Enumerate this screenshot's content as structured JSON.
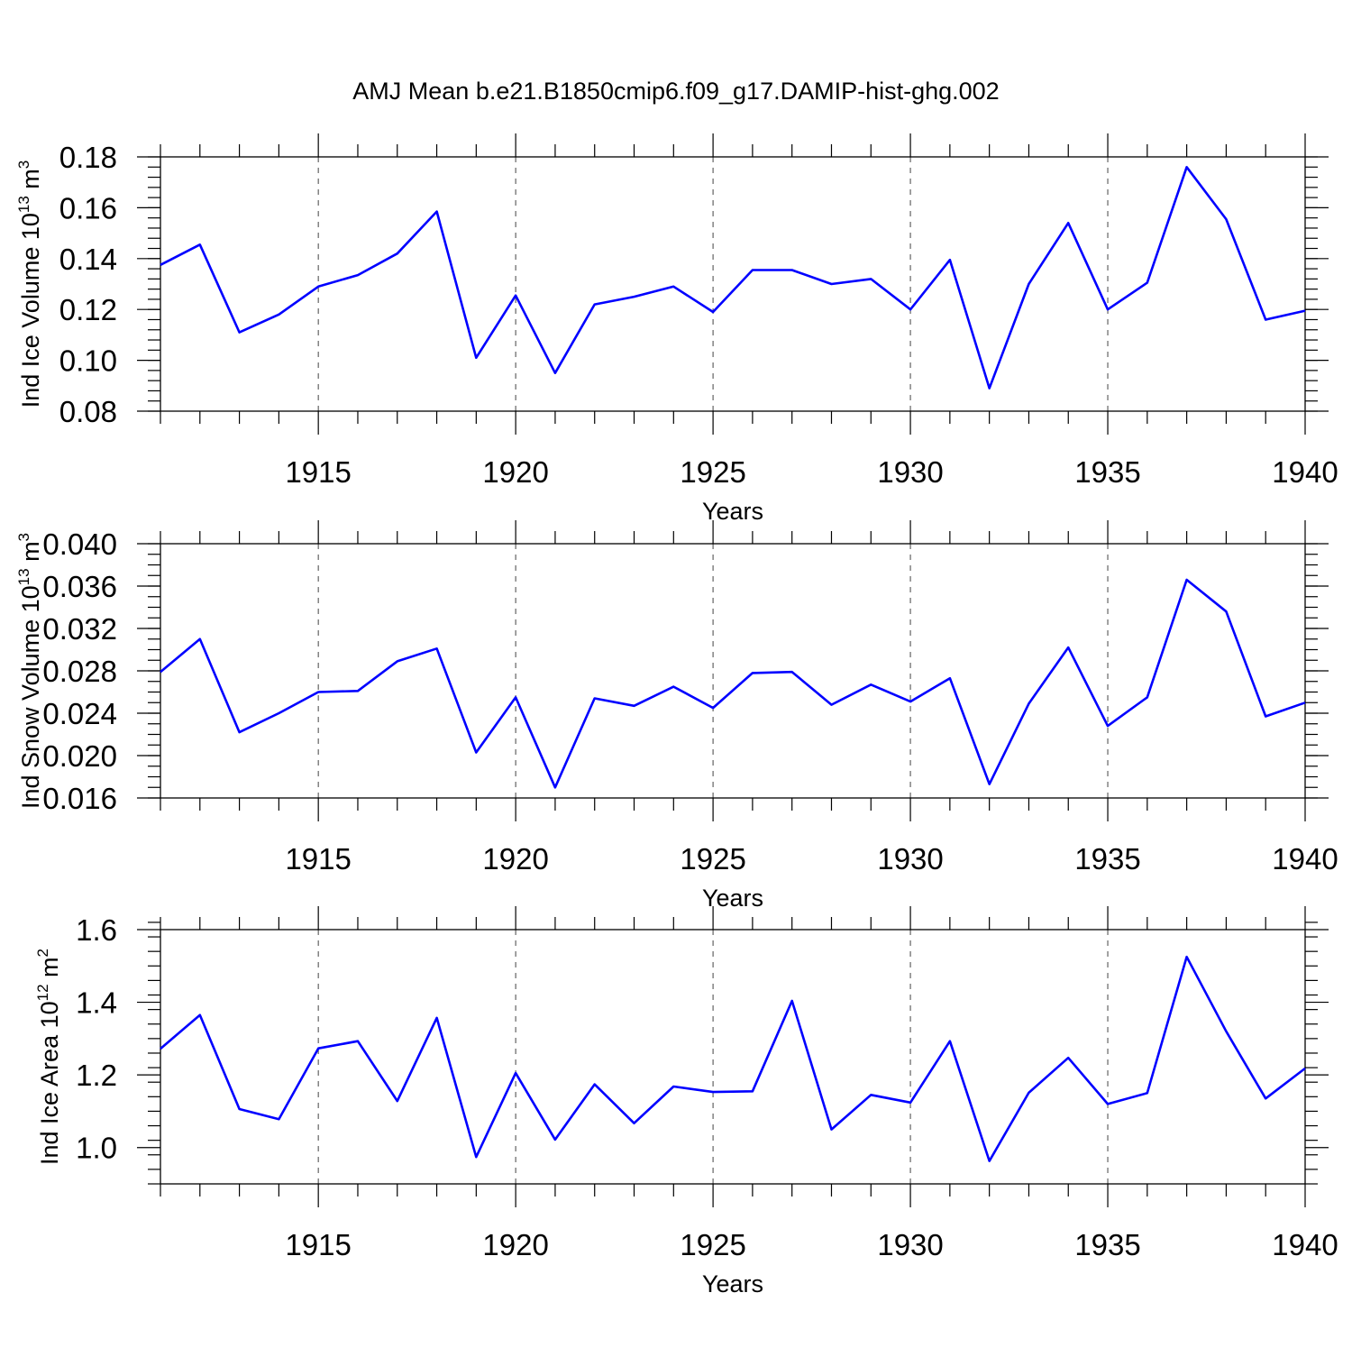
{
  "title": "AMJ Mean b.e21.B1850cmip6.f09_g17.DAMIP-hist-ghg.002",
  "line_color": "#0000ff",
  "chart_data": [
    {
      "type": "line",
      "id": "ice-volume",
      "ylabel_main": "Ind Ice Volume 10",
      "ylabel_exp": "13",
      "ylabel_unit": " m",
      "ylabel_unit_exp": "3",
      "xlabel": "Years",
      "xlim": [
        1911,
        1940
      ],
      "ylim": [
        0.08,
        0.18
      ],
      "xticks": [
        1915,
        1920,
        1925,
        1930,
        1935,
        1940
      ],
      "yticks": [
        0.08,
        0.1,
        0.12,
        0.14,
        0.16,
        0.18
      ],
      "ytick_labels": [
        "0.08",
        "0.10",
        "0.12",
        "0.14",
        "0.16",
        "0.18"
      ],
      "yminor_step": 0.004,
      "x": [
        1911,
        1912,
        1913,
        1914,
        1915,
        1916,
        1917,
        1918,
        1919,
        1920,
        1921,
        1922,
        1923,
        1924,
        1925,
        1926,
        1927,
        1928,
        1929,
        1930,
        1931,
        1932,
        1933,
        1934,
        1935,
        1936,
        1937,
        1938,
        1939,
        1940
      ],
      "values": [
        0.1375,
        0.1455,
        0.111,
        0.118,
        0.129,
        0.1335,
        0.142,
        0.1585,
        0.101,
        0.1255,
        0.095,
        0.122,
        0.125,
        0.129,
        0.119,
        0.1355,
        0.1355,
        0.13,
        0.132,
        0.12,
        0.1395,
        0.089,
        0.13,
        0.154,
        0.12,
        0.1305,
        0.176,
        0.1555,
        0.116,
        0.1195
      ]
    },
    {
      "type": "line",
      "id": "snow-volume",
      "ylabel_main": "Ind Snow Volume 10",
      "ylabel_exp": "13",
      "ylabel_unit": " m",
      "ylabel_unit_exp": "3",
      "xlabel": "Years",
      "xlim": [
        1911,
        1940
      ],
      "ylim": [
        0.016,
        0.04
      ],
      "xticks": [
        1915,
        1920,
        1925,
        1930,
        1935,
        1940
      ],
      "yticks": [
        0.016,
        0.02,
        0.024,
        0.028,
        0.032,
        0.036,
        0.04
      ],
      "ytick_labels": [
        "0.016",
        "0.020",
        "0.024",
        "0.028",
        "0.032",
        "0.036",
        "0.040"
      ],
      "yminor_step": 0.001,
      "x": [
        1911,
        1912,
        1913,
        1914,
        1915,
        1916,
        1917,
        1918,
        1919,
        1920,
        1921,
        1922,
        1923,
        1924,
        1925,
        1926,
        1927,
        1928,
        1929,
        1930,
        1931,
        1932,
        1933,
        1934,
        1935,
        1936,
        1937,
        1938,
        1939,
        1940
      ],
      "values": [
        0.0279,
        0.031,
        0.0222,
        0.024,
        0.026,
        0.0261,
        0.0289,
        0.0301,
        0.0203,
        0.0255,
        0.017,
        0.0254,
        0.0247,
        0.0265,
        0.0245,
        0.0278,
        0.0279,
        0.0248,
        0.0267,
        0.0251,
        0.0273,
        0.0173,
        0.0249,
        0.0302,
        0.0228,
        0.0255,
        0.0366,
        0.0336,
        0.0237,
        0.025
      ]
    },
    {
      "type": "line",
      "id": "ice-area",
      "ylabel_main": "Ind Ice Area 10",
      "ylabel_exp": "12",
      "ylabel_unit": " m",
      "ylabel_unit_exp": "2",
      "xlabel": "Years",
      "xlim": [
        1911,
        1940
      ],
      "ylim": [
        0.9,
        1.6
      ],
      "xticks": [
        1915,
        1920,
        1925,
        1930,
        1935,
        1940
      ],
      "yticks": [
        1.0,
        1.2,
        1.4,
        1.6
      ],
      "ytick_labels": [
        "1.0",
        "1.2",
        "1.4",
        "1.6"
      ],
      "yminor_step": 0.04,
      "x": [
        1911,
        1912,
        1913,
        1914,
        1915,
        1916,
        1917,
        1918,
        1919,
        1920,
        1921,
        1922,
        1923,
        1924,
        1925,
        1926,
        1927,
        1928,
        1929,
        1930,
        1931,
        1932,
        1933,
        1934,
        1935,
        1936,
        1937,
        1938,
        1939,
        1940
      ],
      "values": [
        1.272,
        1.365,
        1.106,
        1.078,
        1.273,
        1.293,
        1.128,
        1.357,
        0.974,
        1.205,
        1.022,
        1.174,
        1.067,
        1.168,
        1.153,
        1.155,
        1.404,
        1.05,
        1.145,
        1.124,
        1.293,
        0.963,
        1.151,
        1.247,
        1.12,
        1.15,
        1.525,
        1.32,
        1.135,
        1.218
      ]
    }
  ]
}
